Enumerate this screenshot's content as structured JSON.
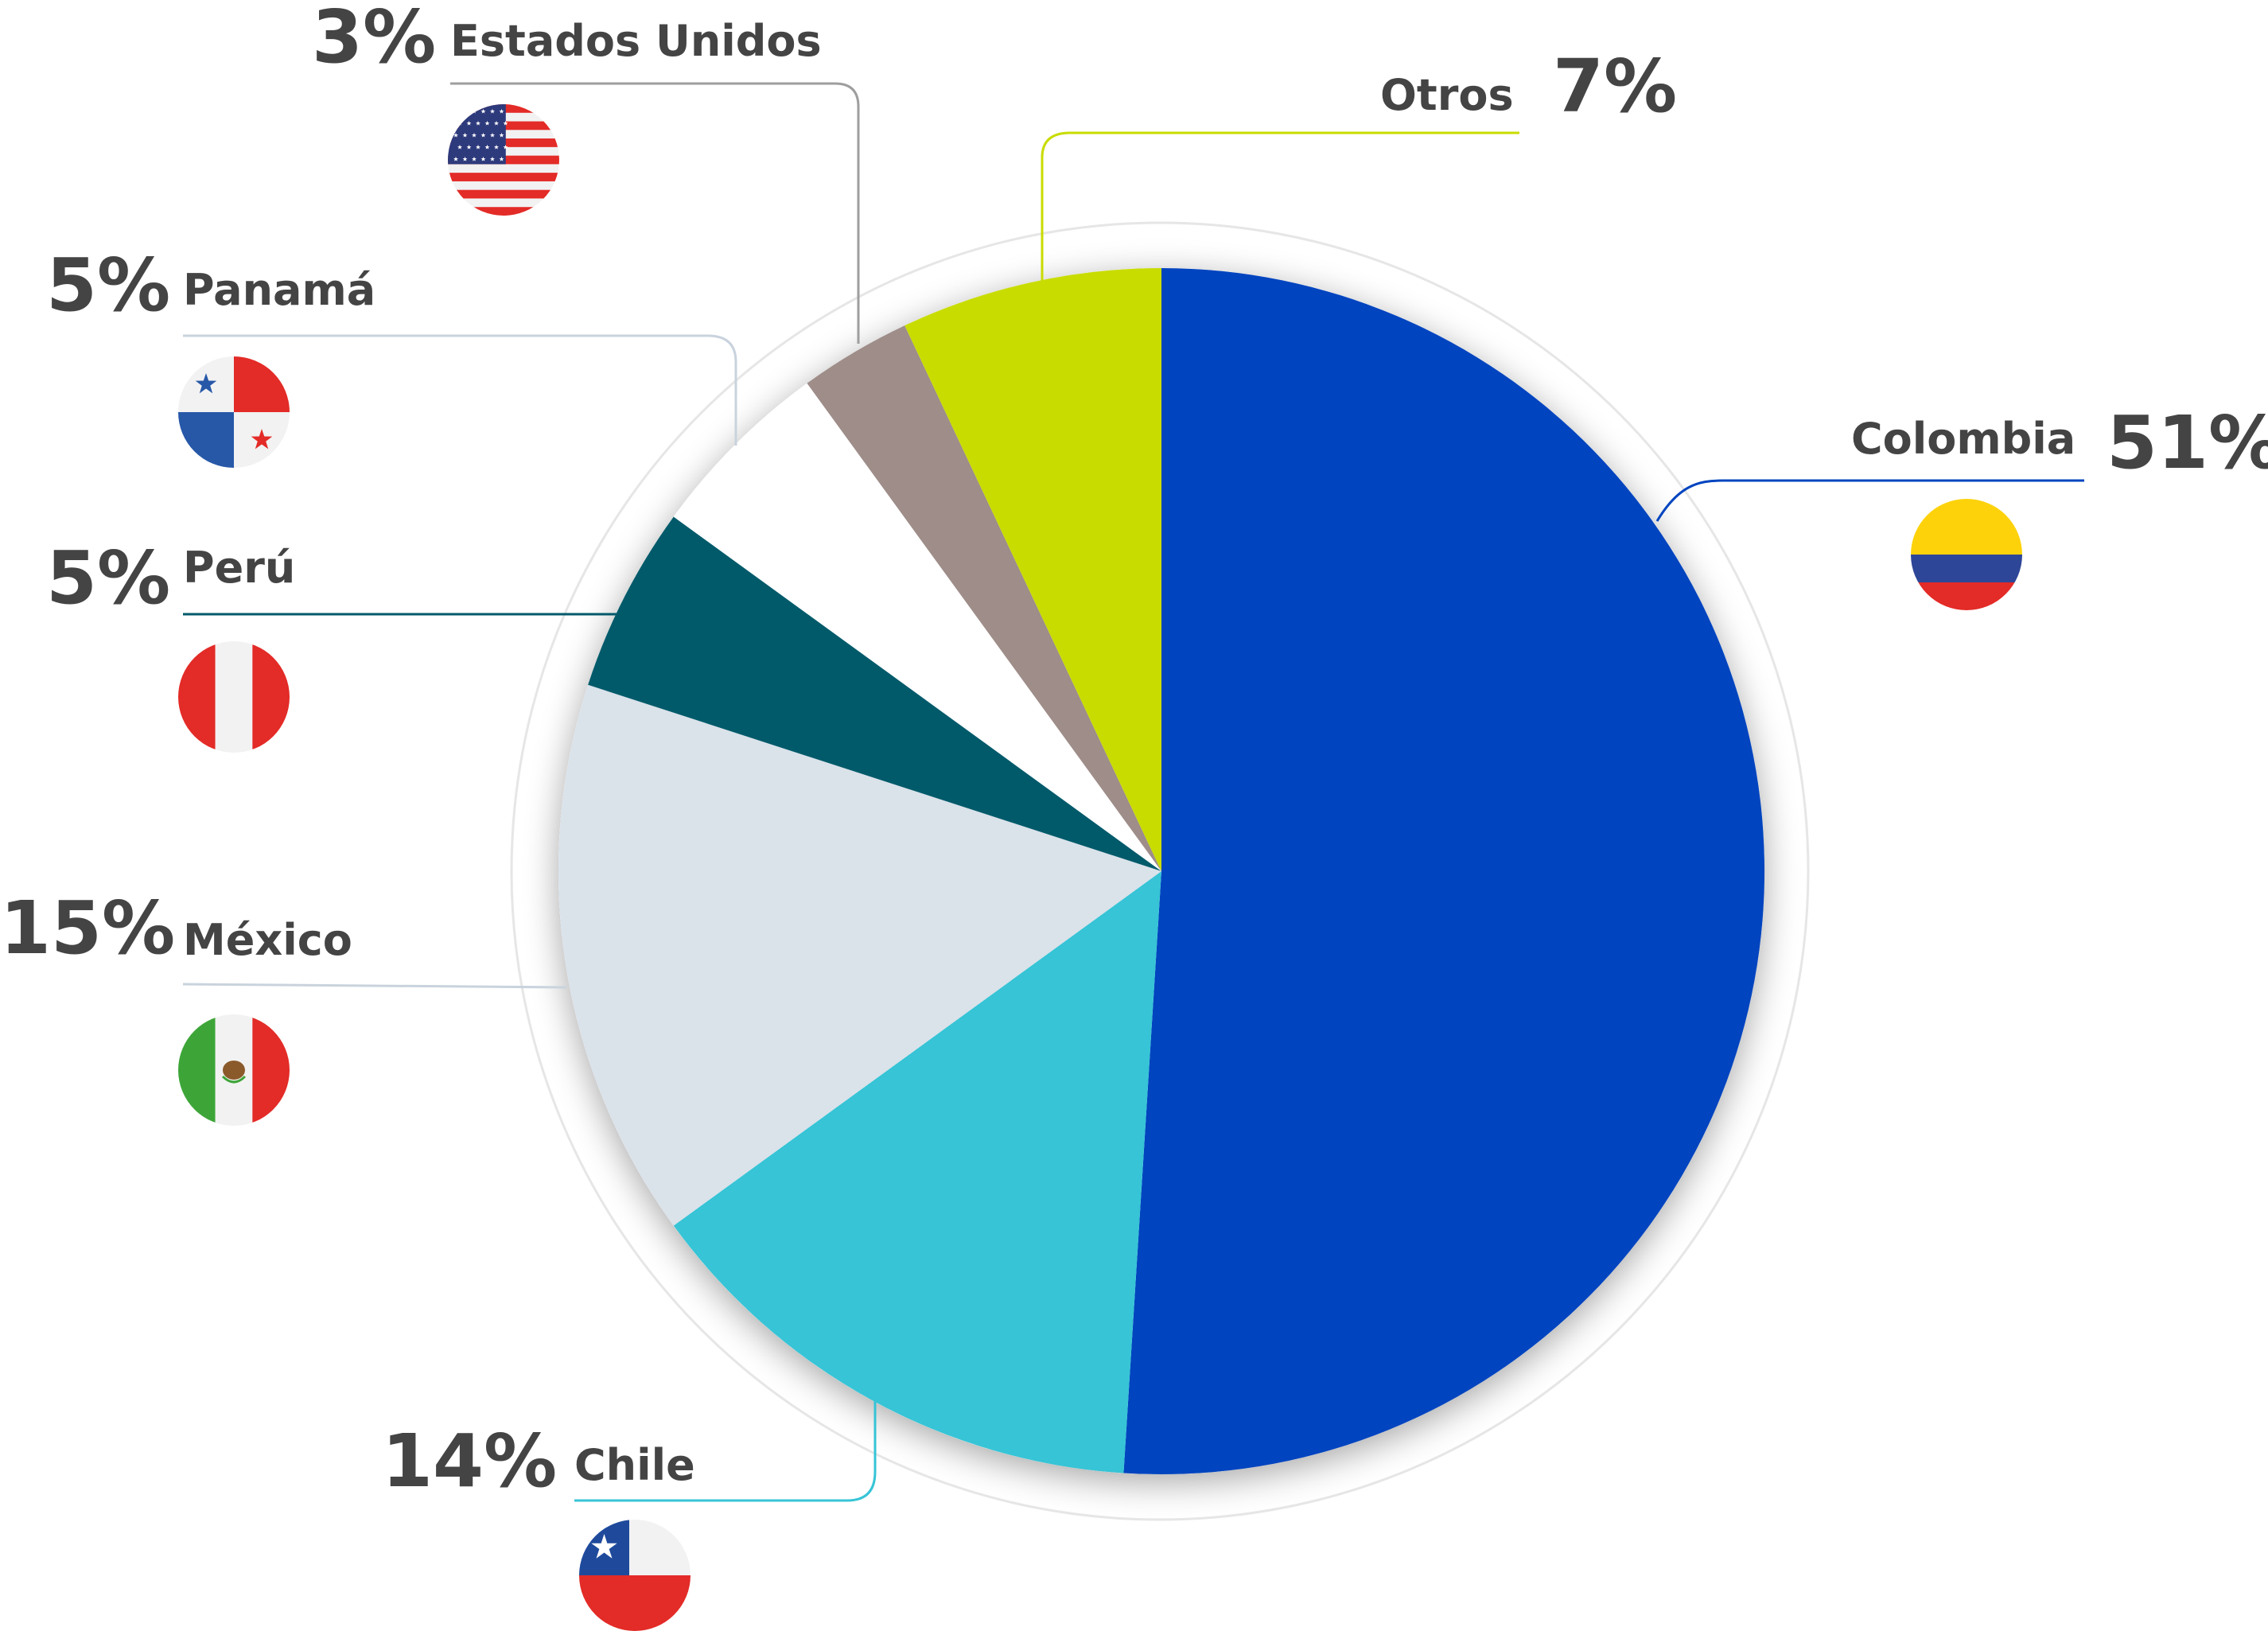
{
  "chart_data": {
    "type": "pie",
    "title": "",
    "slices": [
      {
        "label": "Colombia",
        "value": 51,
        "value_label": "51%",
        "color": "#0044BF",
        "flag": "colombia-flag"
      },
      {
        "label": "Chile",
        "value": 14,
        "value_label": "14%",
        "color": "#36C4D6",
        "flag": "chile-flag"
      },
      {
        "label": "México",
        "value": 15,
        "value_label": "15%",
        "color": "#DAE2EA",
        "flag": "mexico-flag"
      },
      {
        "label": "Perú",
        "value": 5,
        "value_label": "5%",
        "color": "#005A6A",
        "flag": "peru-flag"
      },
      {
        "label": "Panamá",
        "value": 5,
        "value_label": "5%",
        "color": "#FFFFFF",
        "flag": "panama-flag"
      },
      {
        "label": "Estados Unidos",
        "value": 3,
        "value_label": "3%",
        "color": "#9E8D89",
        "flag": "usa-flag"
      },
      {
        "label": "Otros",
        "value": 7,
        "value_label": "7%",
        "color": "#C8DC00",
        "flag": ""
      }
    ],
    "leader_colors": {
      "Colombia": "#0044BF",
      "Chile": "#36C4D6",
      "México": "#C9D3DD",
      "Perú": "#005A6A",
      "Panamá": "#C9D3DD",
      "Estados Unidos": "#9E9E9E",
      "Otros": "#C8DC00"
    },
    "flag_colors": {
      "red": "#E32B27",
      "blue": "#2758A8",
      "yellow": "#FDD20B",
      "navy": "#2E4697",
      "white": "#F2F2F2",
      "green": "#3DA538",
      "chile_blue": "#1F4A9C",
      "usa_blue": "#2D3A7C"
    }
  }
}
